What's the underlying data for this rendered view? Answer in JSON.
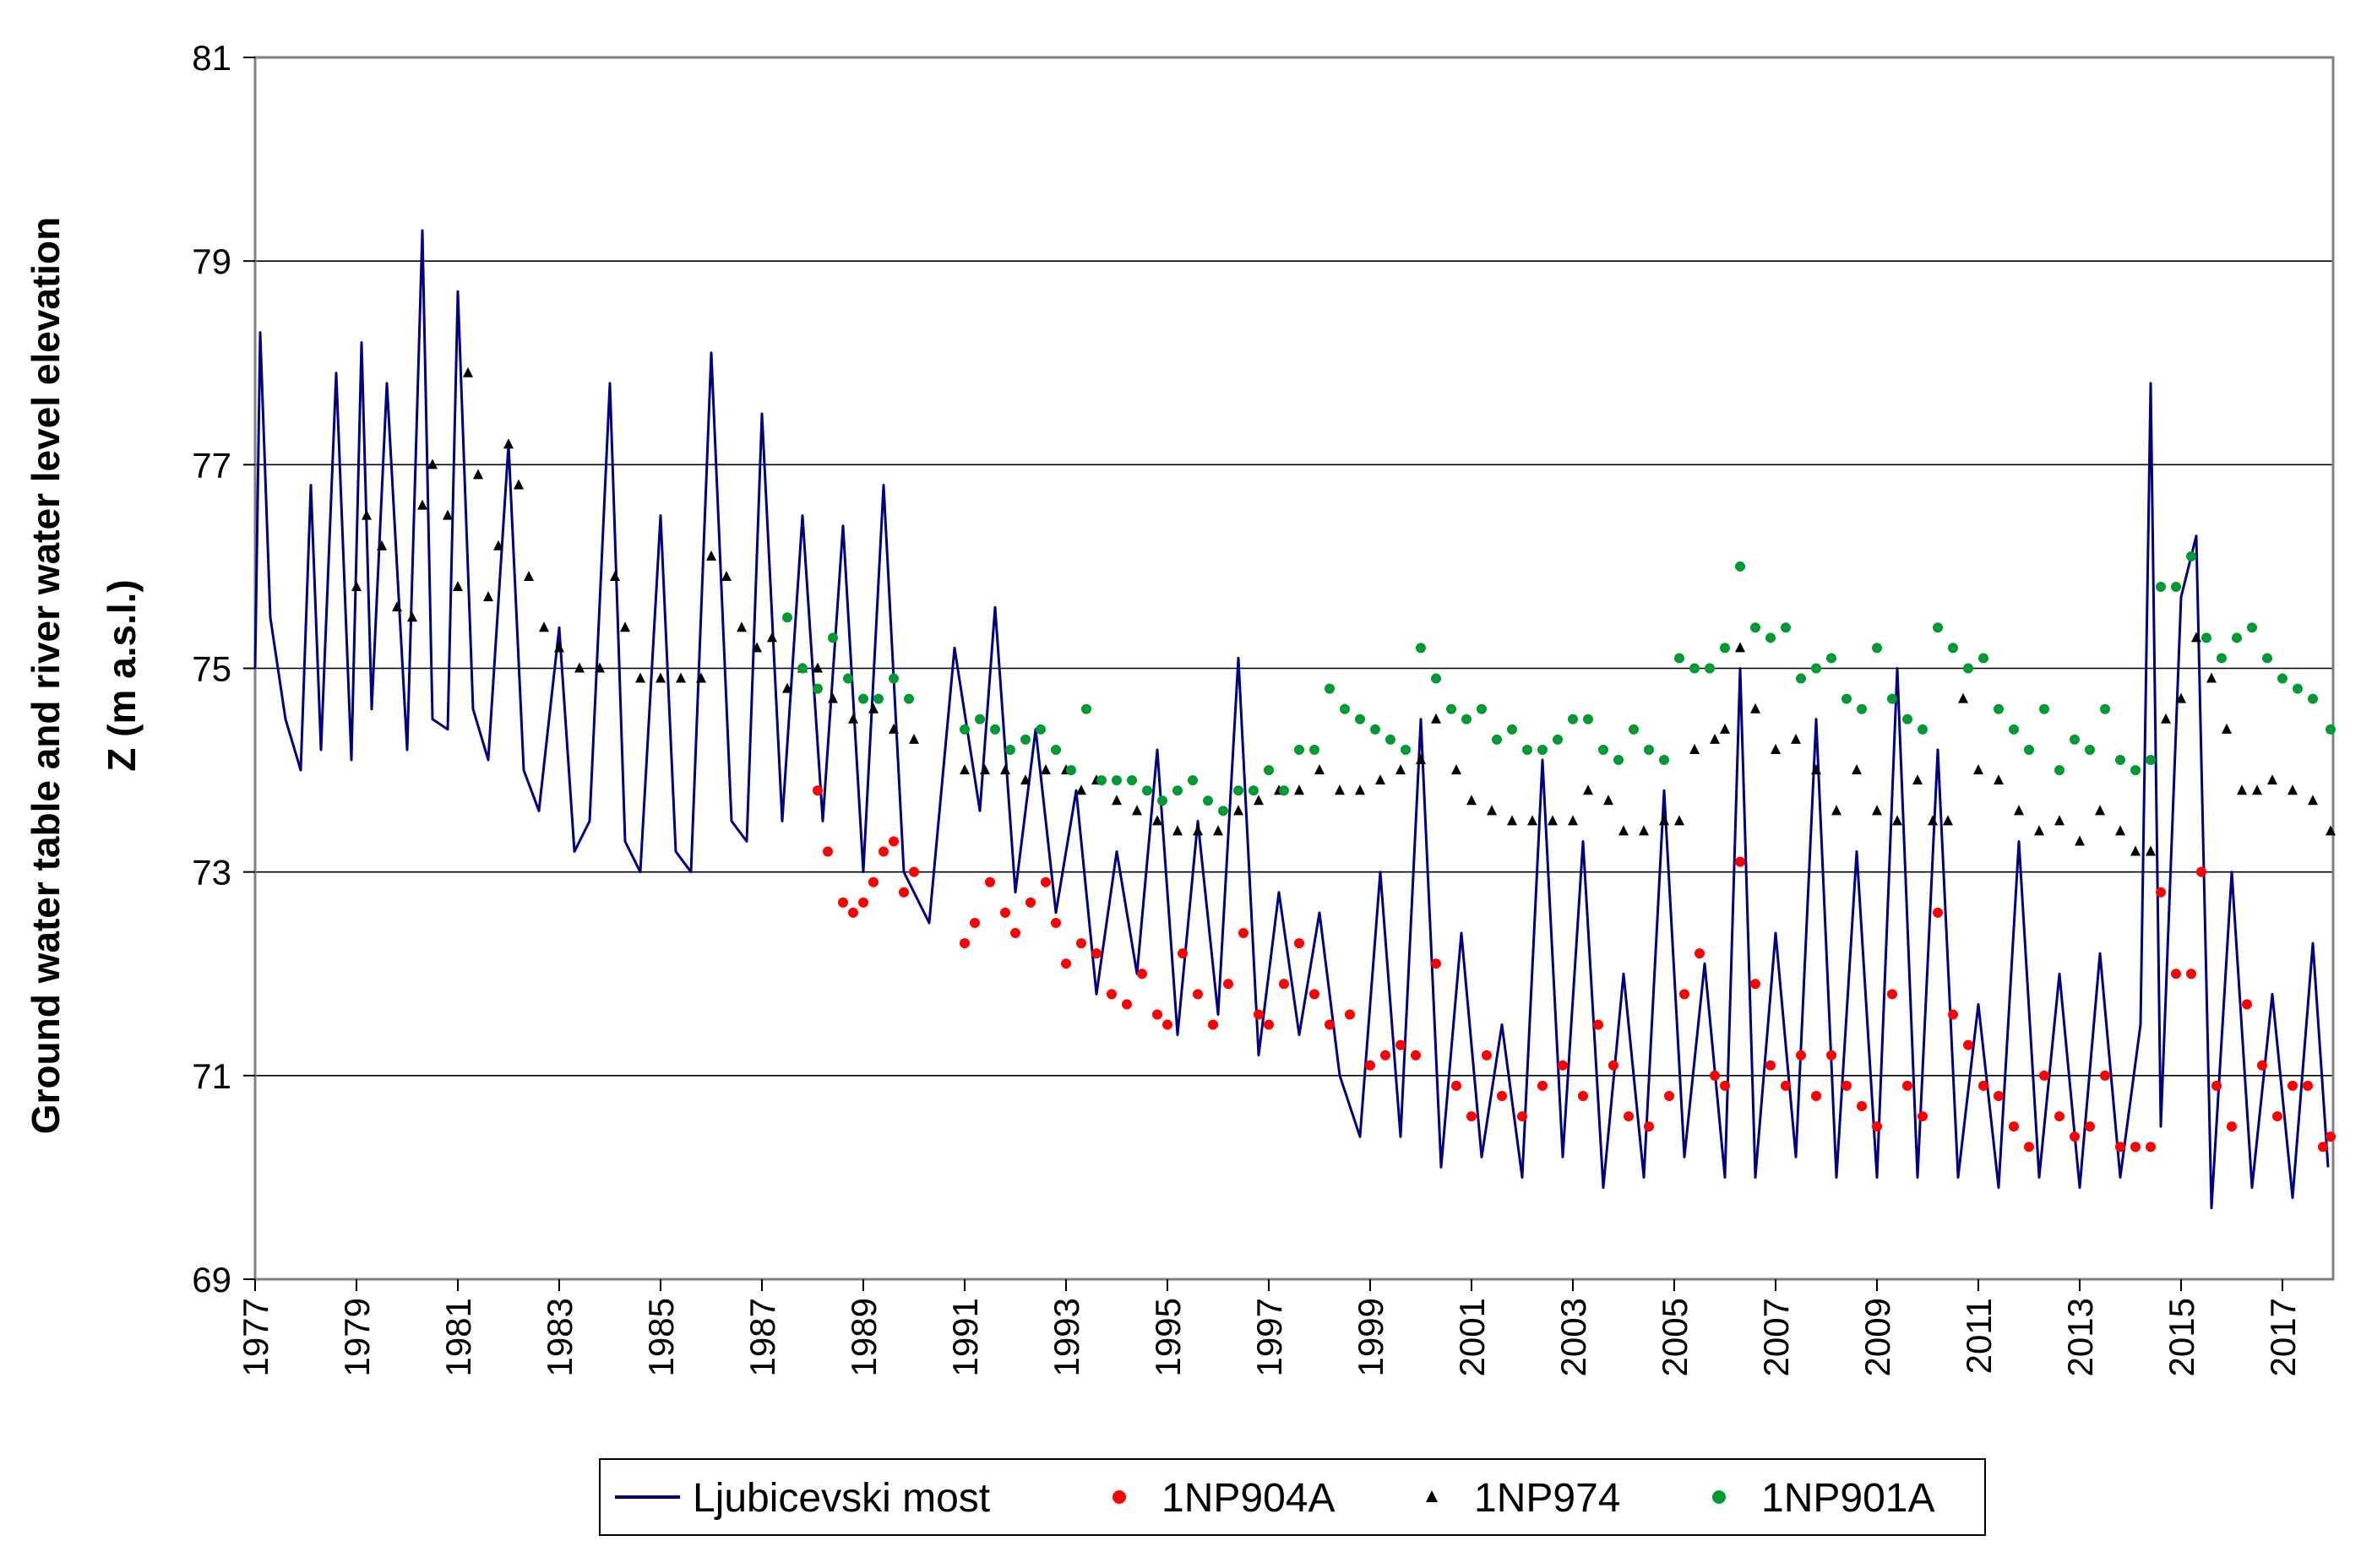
{
  "chart_data": {
    "type": "line",
    "title": "",
    "xlabel": "",
    "ylabel_line1": "Ground water table and river water level elevation",
    "ylabel_line2": "Z (m a.s.l.)",
    "xlim": [
      1977,
      2018
    ],
    "ylim": [
      69,
      81
    ],
    "yticks": [
      69,
      71,
      73,
      75,
      77,
      79,
      81
    ],
    "xticks": [
      1977,
      1979,
      1981,
      1983,
      1985,
      1987,
      1989,
      1991,
      1993,
      1995,
      1997,
      1999,
      2001,
      2003,
      2005,
      2007,
      2009,
      2011,
      2013,
      2015,
      2017
    ],
    "grid": "horizontal",
    "legend_position": "bottom-center",
    "series": [
      {
        "name": "Ljubicevski most",
        "marker": "line",
        "color": "#000080",
        "x": [
          1977.0,
          1977.1,
          1977.3,
          1977.6,
          1977.9,
          1978.1,
          1978.3,
          1978.6,
          1978.9,
          1979.1,
          1979.3,
          1979.6,
          1980.0,
          1980.3,
          1980.5,
          1980.8,
          1981.0,
          1981.3,
          1981.6,
          1982.0,
          1982.3,
          1982.6,
          1983.0,
          1983.3,
          1983.6,
          1984.0,
          1984.3,
          1984.6,
          1985.0,
          1985.3,
          1985.6,
          1986.0,
          1986.4,
          1986.7,
          1987.0,
          1987.4,
          1987.8,
          1988.2,
          1988.6,
          1989.0,
          1989.4,
          1989.8,
          1990.3,
          1990.8,
          1991.3,
          1991.6,
          1992.0,
          1992.4,
          1992.8,
          1993.2,
          1993.6,
          1994.0,
          1994.4,
          1994.8,
          1995.2,
          1995.6,
          1996.0,
          1996.4,
          1996.8,
          1997.2,
          1997.6,
          1998.0,
          1998.4,
          1998.8,
          1999.2,
          1999.6,
          2000.0,
          2000.4,
          2000.8,
          2001.2,
          2001.6,
          2002.0,
          2002.4,
          2002.8,
          2003.2,
          2003.6,
          2004.0,
          2004.4,
          2004.8,
          2005.2,
          2005.6,
          2006.0,
          2006.3,
          2006.6,
          2007.0,
          2007.4,
          2007.8,
          2008.2,
          2008.6,
          2009.0,
          2009.4,
          2009.8,
          2010.2,
          2010.6,
          2011.0,
          2011.4,
          2011.8,
          2012.2,
          2012.6,
          2013.0,
          2013.4,
          2013.8,
          2014.2,
          2014.4,
          2014.6,
          2015.0,
          2015.3,
          2015.6,
          2016.0,
          2016.4,
          2016.8,
          2017.2,
          2017.6,
          2017.9
        ],
        "y": [
          75.0,
          78.3,
          75.5,
          74.5,
          74.0,
          76.8,
          74.2,
          77.9,
          74.1,
          78.2,
          74.6,
          77.8,
          74.2,
          79.3,
          74.5,
          74.4,
          78.7,
          74.6,
          74.1,
          77.2,
          74.0,
          73.6,
          75.4,
          73.2,
          73.5,
          77.8,
          73.3,
          73.0,
          76.5,
          73.2,
          73.0,
          78.1,
          73.5,
          73.3,
          77.5,
          73.5,
          76.5,
          73.5,
          76.4,
          73.0,
          76.8,
          73.0,
          72.5,
          75.2,
          73.6,
          75.6,
          72.8,
          74.4,
          72.6,
          73.8,
          71.8,
          73.2,
          72.0,
          74.2,
          71.4,
          73.5,
          71.6,
          75.1,
          71.2,
          72.8,
          71.4,
          72.6,
          71.0,
          70.4,
          73.0,
          70.4,
          74.5,
          70.1,
          72.4,
          70.2,
          71.5,
          70.0,
          74.1,
          70.2,
          73.3,
          69.9,
          72.0,
          70.0,
          73.8,
          70.2,
          72.1,
          70.0,
          75.0,
          70.0,
          72.4,
          70.2,
          74.5,
          70.0,
          73.2,
          70.0,
          75.0,
          70.0,
          74.2,
          70.0,
          71.7,
          69.9,
          73.3,
          70.0,
          72.0,
          69.9,
          72.2,
          70.0,
          71.5,
          77.8,
          70.5,
          75.7,
          76.3,
          69.7,
          73.0,
          69.9,
          71.8,
          69.8,
          72.3,
          70.1
        ]
      },
      {
        "name": "1NP904A",
        "marker": "circle",
        "color": "#ff0000",
        "x": [
          1988.1,
          1988.3,
          1988.6,
          1988.8,
          1989.0,
          1989.2,
          1989.4,
          1989.6,
          1989.8,
          1990.0,
          1991.0,
          1991.2,
          1991.5,
          1991.8,
          1992.0,
          1992.3,
          1992.6,
          1992.8,
          1993.0,
          1993.3,
          1993.6,
          1993.9,
          1994.2,
          1994.5,
          1994.8,
          1995.0,
          1995.3,
          1995.6,
          1995.9,
          1996.2,
          1996.5,
          1996.8,
          1997.0,
          1997.3,
          1997.6,
          1997.9,
          1998.2,
          1998.6,
          1999.0,
          1999.3,
          1999.6,
          1999.9,
          2000.3,
          2000.7,
          2001.0,
          2001.3,
          2001.6,
          2002.0,
          2002.4,
          2002.8,
          2003.2,
          2003.5,
          2003.8,
          2004.1,
          2004.5,
          2004.9,
          2005.2,
          2005.5,
          2005.8,
          2006.0,
          2006.3,
          2006.6,
          2006.9,
          2007.2,
          2007.5,
          2007.8,
          2008.1,
          2008.4,
          2008.7,
          2009.0,
          2009.3,
          2009.6,
          2009.9,
          2010.2,
          2010.5,
          2010.8,
          2011.1,
          2011.4,
          2011.7,
          2012.0,
          2012.3,
          2012.6,
          2012.9,
          2013.2,
          2013.5,
          2013.8,
          2014.1,
          2014.4,
          2014.6,
          2014.9,
          2015.2,
          2015.4,
          2015.7,
          2016.0,
          2016.3,
          2016.6,
          2016.9,
          2017.2,
          2017.5,
          2017.8,
          2017.95
        ],
        "y": [
          73.8,
          73.2,
          72.7,
          72.6,
          72.7,
          72.9,
          73.2,
          73.3,
          72.8,
          73.0,
          72.3,
          72.5,
          72.9,
          72.6,
          72.4,
          72.7,
          72.9,
          72.5,
          72.1,
          72.3,
          72.2,
          71.8,
          71.7,
          72.0,
          71.6,
          71.5,
          72.2,
          71.8,
          71.5,
          71.9,
          72.4,
          71.6,
          71.5,
          71.9,
          72.3,
          71.8,
          71.5,
          71.6,
          71.1,
          71.2,
          71.3,
          71.2,
          72.1,
          70.9,
          70.6,
          71.2,
          70.8,
          70.6,
          70.9,
          71.1,
          70.8,
          71.5,
          71.1,
          70.6,
          70.5,
          70.8,
          71.8,
          72.2,
          71.0,
          70.9,
          73.1,
          71.9,
          71.1,
          70.9,
          71.2,
          70.8,
          71.2,
          70.9,
          70.7,
          70.5,
          71.8,
          70.9,
          70.6,
          72.6,
          71.6,
          71.3,
          70.9,
          70.8,
          70.5,
          70.3,
          71.0,
          70.6,
          70.4,
          70.5,
          71.0,
          70.3,
          70.3,
          70.3,
          72.8,
          72.0,
          72.0,
          73.0,
          70.9,
          70.5,
          71.7,
          71.1,
          70.6,
          70.9,
          70.9,
          70.3,
          70.4
        ]
      },
      {
        "name": "1NP974",
        "marker": "triangle",
        "color": "#000000",
        "x": [
          1979.0,
          1979.2,
          1979.5,
          1979.8,
          1980.1,
          1980.3,
          1980.5,
          1980.8,
          1981.0,
          1981.2,
          1981.4,
          1981.6,
          1981.8,
          1982.0,
          1982.2,
          1982.4,
          1982.7,
          1983.0,
          1983.4,
          1983.8,
          1984.1,
          1984.3,
          1984.6,
          1985.0,
          1985.4,
          1985.8,
          1986.0,
          1986.3,
          1986.6,
          1986.9,
          1987.2,
          1987.5,
          1987.8,
          1988.1,
          1988.4,
          1988.8,
          1989.2,
          1989.6,
          1990.0,
          1991.0,
          1991.4,
          1991.8,
          1992.2,
          1992.6,
          1993.0,
          1993.3,
          1993.6,
          1994.0,
          1994.4,
          1994.8,
          1995.2,
          1995.6,
          1996.0,
          1996.4,
          1996.8,
          1997.2,
          1997.6,
          1998.0,
          1998.4,
          1998.8,
          1999.2,
          1999.6,
          2000.0,
          2000.3,
          2000.7,
          2001.0,
          2001.4,
          2001.8,
          2002.2,
          2002.6,
          2003.0,
          2003.3,
          2003.7,
          2004.0,
          2004.4,
          2004.8,
          2005.1,
          2005.4,
          2005.8,
          2006.0,
          2006.3,
          2006.6,
          2007.0,
          2007.4,
          2007.8,
          2008.2,
          2008.6,
          2009.0,
          2009.4,
          2009.8,
          2010.1,
          2010.4,
          2010.7,
          2011.0,
          2011.4,
          2011.8,
          2012.2,
          2012.6,
          2013.0,
          2013.4,
          2013.8,
          2014.1,
          2014.4,
          2014.7,
          2015.0,
          2015.3,
          2015.6,
          2015.9,
          2016.2,
          2016.5,
          2016.8,
          2017.2,
          2017.6,
          2017.95
        ],
        "y": [
          75.8,
          76.5,
          76.2,
          75.6,
          75.5,
          76.6,
          77.0,
          76.5,
          75.8,
          77.9,
          76.9,
          75.7,
          76.2,
          77.2,
          76.8,
          75.9,
          75.4,
          75.2,
          75.0,
          75.0,
          75.9,
          75.4,
          74.9,
          74.9,
          74.9,
          74.9,
          76.1,
          75.9,
          75.4,
          75.2,
          75.3,
          74.8,
          75.0,
          75.0,
          74.7,
          74.5,
          74.6,
          74.4,
          74.3,
          74.0,
          74.0,
          74.0,
          73.9,
          74.0,
          74.0,
          73.8,
          73.9,
          73.7,
          73.6,
          73.5,
          73.4,
          73.4,
          73.4,
          73.6,
          73.7,
          73.8,
          73.8,
          74.0,
          73.8,
          73.8,
          73.9,
          74.0,
          74.1,
          74.5,
          74.0,
          73.7,
          73.6,
          73.5,
          73.5,
          73.5,
          73.5,
          73.8,
          73.7,
          73.4,
          73.4,
          73.5,
          73.5,
          74.2,
          74.3,
          74.4,
          75.2,
          74.6,
          74.2,
          74.3,
          74.0,
          73.6,
          74.0,
          73.6,
          73.5,
          73.9,
          73.5,
          73.5,
          74.7,
          74.0,
          73.9,
          73.6,
          73.4,
          73.5,
          73.3,
          73.6,
          73.4,
          73.2,
          73.2,
          74.5,
          74.7,
          75.3,
          74.9,
          74.4,
          73.8,
          73.8,
          73.9,
          73.8,
          73.7,
          73.4
        ]
      },
      {
        "name": "1NP901A",
        "marker": "circle",
        "color": "#009933",
        "x": [
          1987.5,
          1987.8,
          1988.1,
          1988.4,
          1988.7,
          1989.0,
          1989.3,
          1989.6,
          1989.9,
          1991.0,
          1991.3,
          1991.6,
          1991.9,
          1992.2,
          1992.5,
          1992.8,
          1993.1,
          1993.4,
          1993.7,
          1994.0,
          1994.3,
          1994.6,
          1994.9,
          1995.2,
          1995.5,
          1995.8,
          1996.1,
          1996.4,
          1996.7,
          1997.0,
          1997.3,
          1997.6,
          1997.9,
          1998.2,
          1998.5,
          1998.8,
          1999.1,
          1999.4,
          1999.7,
          2000.0,
          2000.3,
          2000.6,
          2000.9,
          2001.2,
          2001.5,
          2001.8,
          2002.1,
          2002.4,
          2002.7,
          2003.0,
          2003.3,
          2003.6,
          2003.9,
          2004.2,
          2004.5,
          2004.8,
          2005.1,
          2005.4,
          2005.7,
          2006.0,
          2006.3,
          2006.6,
          2006.9,
          2007.2,
          2007.5,
          2007.8,
          2008.1,
          2008.4,
          2008.7,
          2009.0,
          2009.3,
          2009.6,
          2009.9,
          2010.2,
          2010.5,
          2010.8,
          2011.1,
          2011.4,
          2011.7,
          2012.0,
          2012.3,
          2012.6,
          2012.9,
          2013.2,
          2013.5,
          2013.8,
          2014.1,
          2014.4,
          2014.6,
          2014.9,
          2015.2,
          2015.5,
          2015.8,
          2016.1,
          2016.4,
          2016.7,
          2017.0,
          2017.3,
          2017.6,
          2017.95
        ],
        "y": [
          75.5,
          75.0,
          74.8,
          75.3,
          74.9,
          74.7,
          74.7,
          74.9,
          74.7,
          74.4,
          74.5,
          74.4,
          74.2,
          74.3,
          74.4,
          74.2,
          74.0,
          74.6,
          73.9,
          73.9,
          73.9,
          73.8,
          73.7,
          73.8,
          73.9,
          73.7,
          73.6,
          73.8,
          73.8,
          74.0,
          73.8,
          74.2,
          74.2,
          74.8,
          74.6,
          74.5,
          74.4,
          74.3,
          74.2,
          75.2,
          74.9,
          74.6,
          74.5,
          74.6,
          74.3,
          74.4,
          74.2,
          74.2,
          74.3,
          74.5,
          74.5,
          74.2,
          74.1,
          74.4,
          74.2,
          74.1,
          75.1,
          75.0,
          75.0,
          75.2,
          76.0,
          75.4,
          75.3,
          75.4,
          74.9,
          75.0,
          75.1,
          74.7,
          74.6,
          75.2,
          74.7,
          74.5,
          74.4,
          75.4,
          75.2,
          75.0,
          75.1,
          74.6,
          74.4,
          74.2,
          74.6,
          74.0,
          74.3,
          74.2,
          74.6,
          74.1,
          74.0,
          74.1,
          75.8,
          75.8,
          76.1,
          75.3,
          75.1,
          75.3,
          75.4,
          75.1,
          74.9,
          74.8,
          74.7,
          74.4
        ]
      }
    ]
  }
}
